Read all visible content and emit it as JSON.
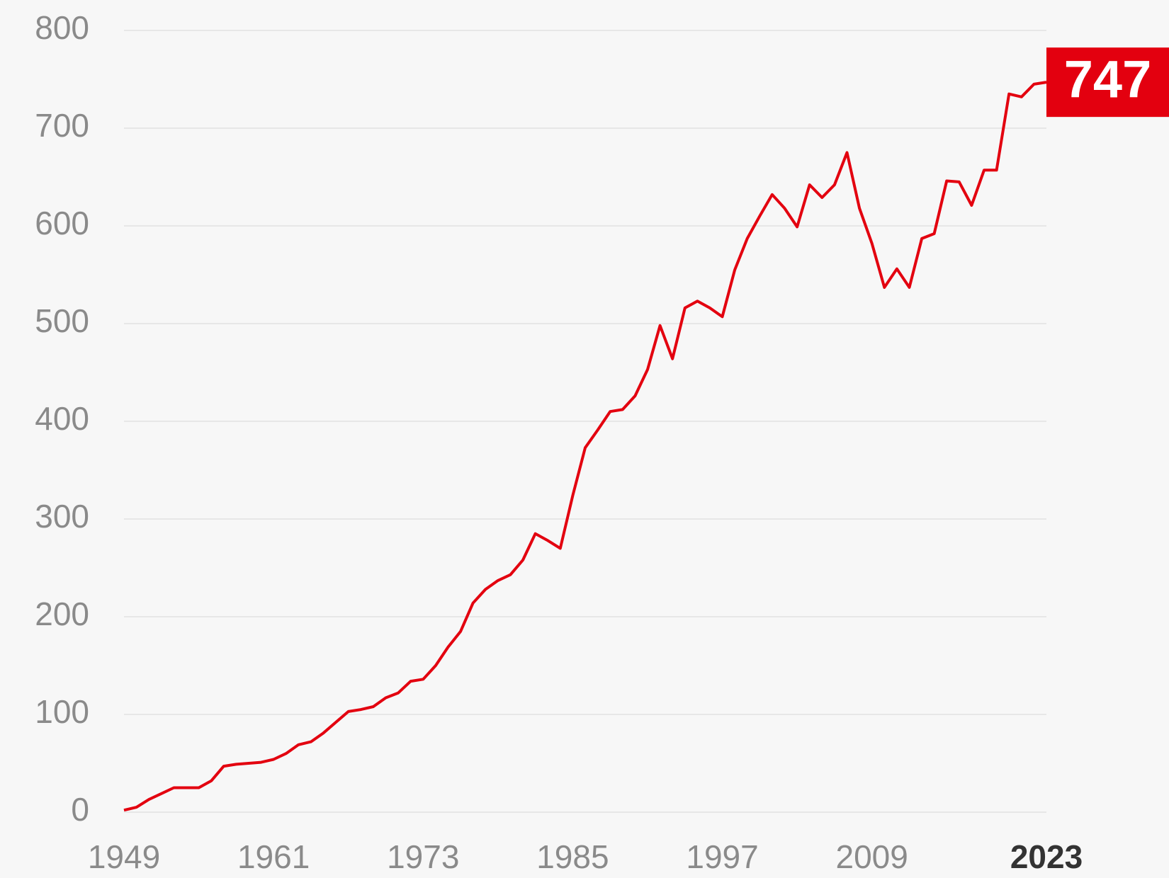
{
  "chart_data": {
    "type": "line",
    "x": [
      1949,
      1950,
      1951,
      1952,
      1953,
      1954,
      1955,
      1956,
      1957,
      1958,
      1959,
      1960,
      1961,
      1962,
      1963,
      1964,
      1965,
      1966,
      1967,
      1968,
      1969,
      1970,
      1971,
      1972,
      1973,
      1974,
      1975,
      1976,
      1977,
      1978,
      1979,
      1980,
      1981,
      1982,
      1983,
      1984,
      1985,
      1986,
      1987,
      1988,
      1989,
      1990,
      1991,
      1992,
      1993,
      1994,
      1995,
      1996,
      1997,
      1998,
      1999,
      2000,
      2001,
      2002,
      2003,
      2004,
      2005,
      2006,
      2007,
      2008,
      2009,
      2010,
      2011,
      2012,
      2013,
      2014,
      2015,
      2016,
      2017,
      2018,
      2019,
      2020,
      2021,
      2022,
      2023
    ],
    "series": [
      {
        "color": "#e3000f",
        "values": [
          2,
          5,
          13,
          19,
          25,
          25,
          25,
          32,
          47,
          49,
          50,
          51,
          54,
          60,
          69,
          72,
          81,
          92,
          103,
          105,
          108,
          117,
          122,
          134,
          136,
          150,
          169,
          185,
          214,
          228,
          237,
          243,
          258,
          285,
          278,
          270,
          324,
          373,
          391,
          410,
          412,
          426,
          453,
          498,
          464,
          516,
          523,
          516,
          507,
          555,
          587,
          610,
          632,
          618,
          599,
          642,
          629,
          642,
          675,
          618,
          582,
          537,
          556,
          537,
          587,
          592,
          646,
          645,
          621,
          657,
          657,
          735,
          732,
          745,
          747
        ]
      }
    ],
    "xlim": [
      1949,
      2023
    ],
    "xticks": [
      1949,
      1961,
      1973,
      1985,
      1997,
      2009,
      2023
    ],
    "ylim": [
      0,
      800
    ],
    "yticks": [
      0,
      100,
      200,
      300,
      400,
      500,
      600,
      700,
      800
    ],
    "grid": true
  }
}
